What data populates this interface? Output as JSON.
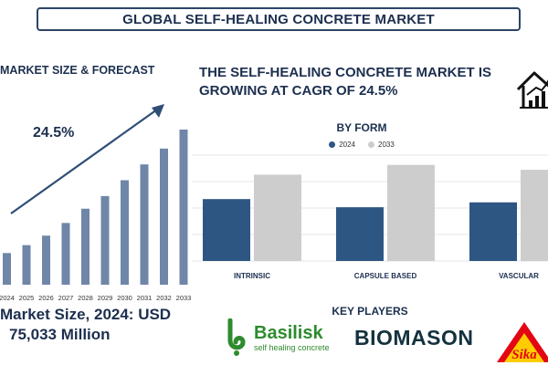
{
  "header": {
    "title": "GLOBAL SELF-HEALING CONCRETE MARKET"
  },
  "left_panel": {
    "title": "MARKET SIZE & FORECAST",
    "cagr_label": "24.5%",
    "market_size_line1": "Market Size, 2024: USD",
    "market_size_line2": "75,033 Million"
  },
  "right_panel": {
    "headline": "THE SELF-HEALING CONCRETE MARKET IS GROWING AT CAGR OF 24.5%",
    "icon": "house-growth-icon",
    "by_form_title": "BY FORM",
    "key_players_title": "KEY PLAYERS",
    "key_players": [
      {
        "name": "Basilisk",
        "tagline": "self healing concrete",
        "icon": "basilisk-logo-icon",
        "color": "#2e8b2e"
      },
      {
        "name": "BIOMASON",
        "icon": "biomason-logo-icon",
        "color": "#14323e"
      },
      {
        "name": "Sika",
        "icon": "sika-logo-icon",
        "color": "#e30613"
      }
    ]
  },
  "colors": {
    "navy": "#1c2f4f",
    "bar_blue": "#6f86a8",
    "series_2024": "#2d5683",
    "series_2033": "#cdcdcd",
    "arrow": "#2f4e76"
  },
  "chart_data": [
    {
      "type": "bar",
      "title": "MARKET SIZE & FORECAST",
      "categories": [
        "2024",
        "2025",
        "2026",
        "2027",
        "2028",
        "2029",
        "2030",
        "2031",
        "2032",
        "2033"
      ],
      "values": [
        1.0,
        1.25,
        1.55,
        1.95,
        2.4,
        2.8,
        3.3,
        3.8,
        4.3,
        4.9
      ],
      "annotation": "24.5%",
      "grid": false
    },
    {
      "type": "bar",
      "title": "BY FORM",
      "categories": [
        "INTRINSIC",
        "CAPSULE BASED",
        "VASCULAR"
      ],
      "series": [
        {
          "name": "2024",
          "values": [
            3.8,
            3.3,
            3.6
          ],
          "color": "#2d5683"
        },
        {
          "name": "2033",
          "values": [
            5.3,
            5.9,
            5.6
          ],
          "color": "#cdcdcd"
        }
      ],
      "ylim": [
        0,
        6.5
      ],
      "legend": "top",
      "grid": true
    }
  ]
}
